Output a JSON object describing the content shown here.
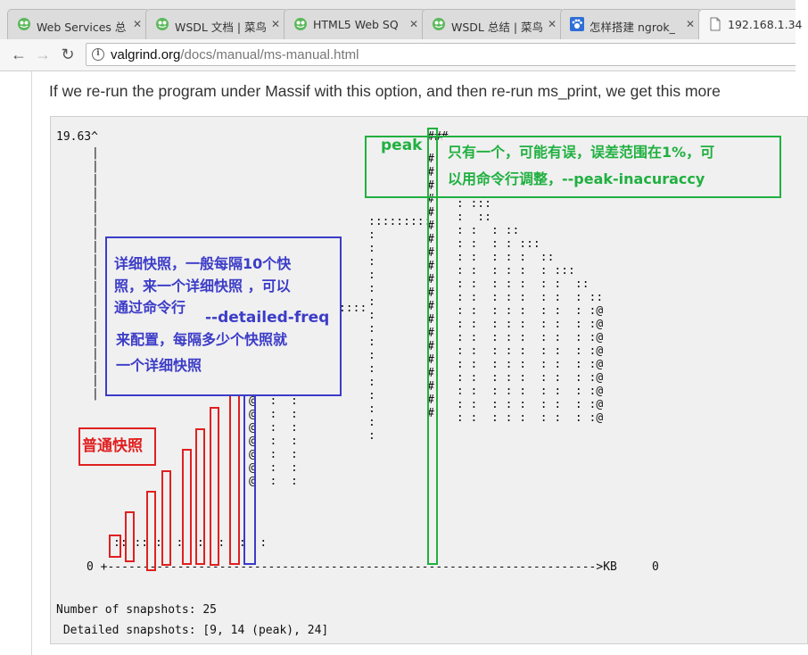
{
  "tabs": [
    {
      "title": "Web Services 总",
      "icon": "green-frog-favicon-icon"
    },
    {
      "title": "WSDL 文档 | 菜鸟",
      "icon": "green-frog-favicon-icon"
    },
    {
      "title": "HTML5 Web SQ",
      "icon": "green-frog-favicon-icon"
    },
    {
      "title": "WSDL 总结 | 菜鸟",
      "icon": "green-frog-favicon-icon"
    },
    {
      "title": "怎样搭建 ngrok_",
      "icon": "paw-favicon-icon"
    },
    {
      "title": "192.168.1.34",
      "icon": "page-icon"
    }
  ],
  "address": {
    "host": "valgrind.org",
    "path": "/docs/manual/ms-manual.html"
  },
  "intro_text": "If we re-run the program under Massif with this option, and then re-run ms_print, we get this more",
  "chart": {
    "peak_value": "19.63^",
    "zero_label": "0",
    "x_axis_unit": "KB",
    "x_end_label": "0",
    "snapshot_count_line": "Number of snapshots: 25",
    "detailed_snapshots_line": " Detailed snapshots: [9, 14 (peak), 24]"
  },
  "annotations": {
    "peak_label": "peak",
    "peak_note_line1": "只有一个，可能有误，误差范围在1%，可",
    "peak_note_line2": "以用命令行调整，--peak-inacuraccy",
    "detailed_line1": "详细快照，一般每隔10个快",
    "detailed_line2": "照，来一个详细快照 ，可以",
    "detailed_line3": "通过命令行",
    "detailed_flag": "--detailed-freq",
    "detailed_line4": "来配置，每隔多少个快照就",
    "detailed_line5": "一个详细快照",
    "normal_label": "普通快照"
  },
  "colors": {
    "red": "#e02020",
    "blue": "#3c3cc8",
    "green": "#20b040"
  }
}
